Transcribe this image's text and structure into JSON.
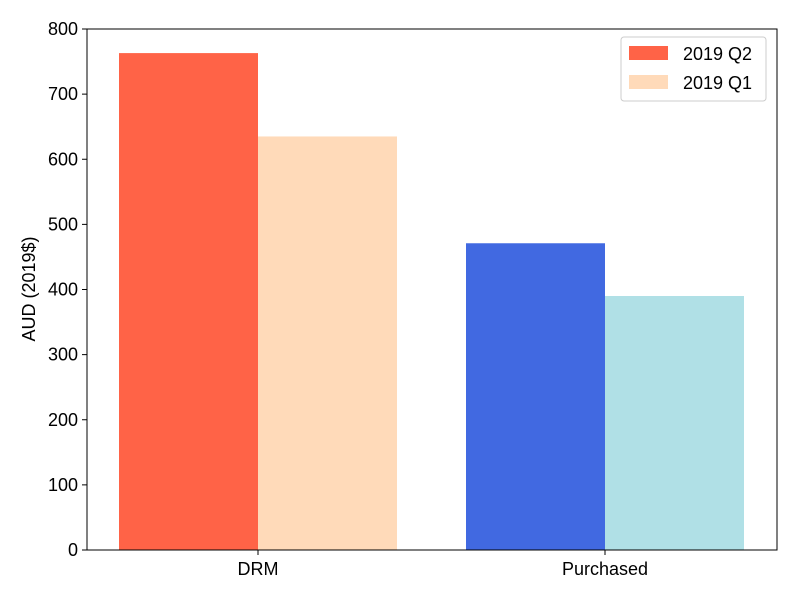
{
  "chart_data": {
    "type": "bar",
    "ylabel": "AUD (2019$)",
    "ylim": [
      0,
      800
    ],
    "yticks": [
      0,
      100,
      200,
      300,
      400,
      500,
      600,
      700,
      800
    ],
    "categories": [
      "DRM",
      "Purchased"
    ],
    "series": [
      {
        "name": "2019 Q2",
        "values": [
          763,
          471
        ]
      },
      {
        "name": "2019 Q1",
        "values": [
          635,
          390
        ]
      }
    ],
    "bar_colors": [
      [
        "#ff6347",
        "#ffdab9"
      ],
      [
        "#4169e1",
        "#b0e0e6"
      ]
    ],
    "legend": {
      "placement": "top-right",
      "entries": [
        {
          "label": "2019 Q2",
          "color": "#ff6347"
        },
        {
          "label": "2019 Q1",
          "color": "#ffdab9"
        }
      ]
    },
    "grid": false
  }
}
